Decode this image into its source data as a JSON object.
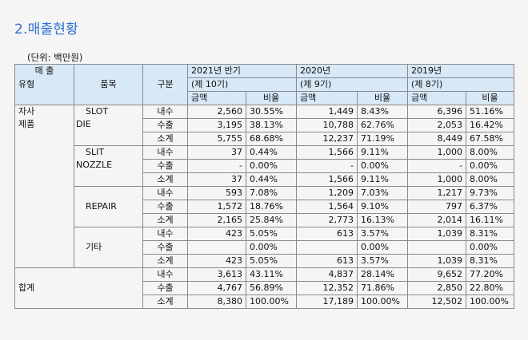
{
  "page_title": "2.매출현황",
  "unit": "(단위: 백만원)",
  "header": {
    "col_type_line1": "매 출",
    "col_type_line2": "유형",
    "col_item": "품목",
    "col_div": "구분",
    "periods": [
      {
        "name": "2021년 반기",
        "term": "(제 10기)"
      },
      {
        "name": "2020년",
        "term": "(제 9기)"
      },
      {
        "name": "2019년",
        "term": "(제 8기)"
      }
    ],
    "amount_label": "금액",
    "ratio_label": "비율"
  },
  "groups": [
    {
      "type_line1": "자사",
      "type_line2": "제품",
      "items": [
        {
          "label_line1": "SLOT",
          "label_line2": "DIE",
          "rows": [
            {
              "div": "내수",
              "v": [
                "2,560",
                "30.55%",
                "1,449",
                "8.43%",
                "6,396",
                "51.16%"
              ]
            },
            {
              "div": "수출",
              "v": [
                "3,195",
                "38.13%",
                "10,788",
                "62.76%",
                "2,053",
                "16.42%"
              ]
            },
            {
              "div": "소계",
              "v": [
                "5,755",
                "68.68%",
                "12,237",
                "71.19%",
                "8,449",
                "67.58%"
              ]
            }
          ]
        },
        {
          "label_line1": "SLIT",
          "label_line2": "NOZZLE",
          "rows": [
            {
              "div": "내수",
              "v": [
                "37",
                "0.44%",
                "1,566",
                "9.11%",
                "1,000",
                "8.00%"
              ]
            },
            {
              "div": "수출",
              "v": [
                "-",
                "0.00%",
                "-",
                "0.00%",
                "-",
                "0.00%"
              ]
            },
            {
              "div": "소계",
              "v": [
                "37",
                "0.44%",
                "1,566",
                "9.11%",
                "1,000",
                "8.00%"
              ]
            }
          ]
        },
        {
          "label_line1": "REPAIR",
          "label_line2": "",
          "rows": [
            {
              "div": "내수",
              "v": [
                "593",
                "7.08%",
                "1,209",
                "7.03%",
                "1,217",
                "9.73%"
              ]
            },
            {
              "div": "수출",
              "v": [
                "1,572",
                "18.76%",
                "1,564",
                "9.10%",
                "797",
                "6.37%"
              ]
            },
            {
              "div": "소계",
              "v": [
                "2,165",
                "25.84%",
                "2,773",
                "16.13%",
                "2,014",
                "16.11%"
              ]
            }
          ]
        },
        {
          "label_line1": "기타",
          "label_line2": "",
          "rows": [
            {
              "div": "내수",
              "v": [
                "423",
                "5.05%",
                "613",
                "3.57%",
                "1,039",
                "8.31%"
              ]
            },
            {
              "div": "수출",
              "v": [
                "",
                "0.00%",
                "",
                "0.00%",
                "",
                "0.00%"
              ]
            },
            {
              "div": "소계",
              "v": [
                "423",
                "5.05%",
                "613",
                "3.57%",
                "1,039",
                "8.31%"
              ]
            }
          ]
        }
      ]
    }
  ],
  "total": {
    "label": "합계",
    "rows": [
      {
        "div": "내수",
        "v": [
          "3,613",
          "43.11%",
          "4,837",
          "28.14%",
          "9,652",
          "77.20%"
        ]
      },
      {
        "div": "수출",
        "v": [
          "4,767",
          "56.89%",
          "12,352",
          "71.86%",
          "2,850",
          "22.80%"
        ]
      },
      {
        "div": "소계",
        "v": [
          "8,380",
          "100.00%",
          "17,189",
          "100.00%",
          "12,502",
          "100.00%"
        ]
      }
    ]
  }
}
